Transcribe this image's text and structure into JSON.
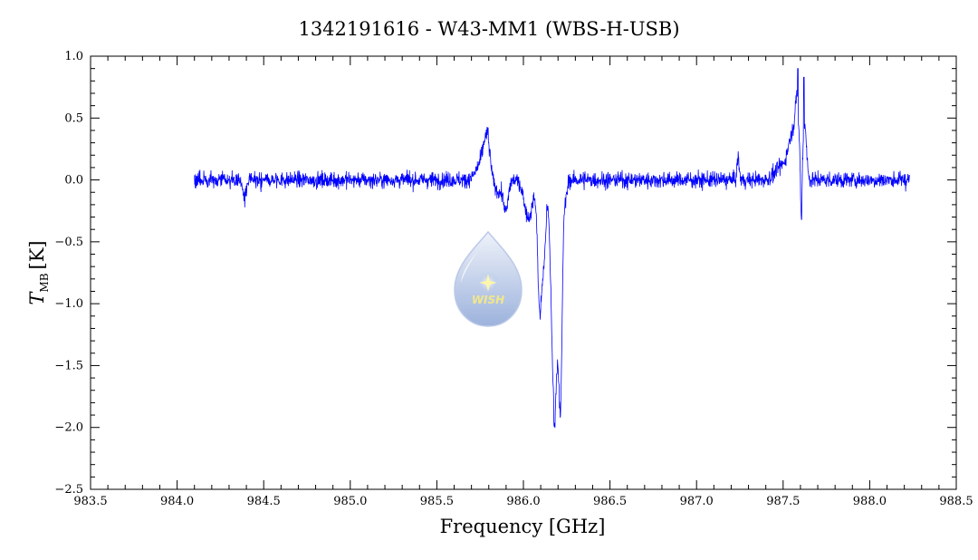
{
  "chart_data": {
    "type": "line",
    "title": "1342191616 - W43-MM1 (WBS-H-USB)",
    "xlabel": "Frequency [GHz]",
    "ylabel_symbol": "T",
    "ylabel_subscript": "MB",
    "ylabel_unit": "[K]",
    "xlim": [
      983.5,
      988.5
    ],
    "ylim": [
      -2.5,
      1.0
    ],
    "x_ticks": [
      "983.5",
      "984.0",
      "984.5",
      "985.0",
      "985.5",
      "986.0",
      "986.5",
      "987.0",
      "987.5",
      "988.0",
      "988.5"
    ],
    "y_ticks": [
      "1.0",
      "0.5",
      "0.0",
      "-0.5",
      "-1.0",
      "-1.5",
      "-2.0",
      "-2.5"
    ],
    "grid": false,
    "legend": "none",
    "series": [
      {
        "color": "#0000ff",
        "x_range": [
          984.1,
          988.23
        ],
        "noise_rms": 0.045,
        "baseline": 0.0,
        "features": [
          {
            "x": 984.39,
            "y": -0.22
          },
          {
            "x": 985.8,
            "y": 0.42
          },
          {
            "x": 985.9,
            "y": -0.35
          },
          {
            "x": 986.1,
            "y": -1.2
          },
          {
            "x": 986.18,
            "y": -2.0
          },
          {
            "x": 986.22,
            "y": -1.6
          },
          {
            "x": 987.24,
            "y": 0.32
          },
          {
            "x": 987.58,
            "y": 0.92
          },
          {
            "x": 987.62,
            "y": 0.84
          },
          {
            "x": 987.61,
            "y": -0.32
          }
        ]
      }
    ]
  },
  "logo": {
    "text": "WISH",
    "colors": {
      "drop_top": "#e9eef8",
      "drop_bottom": "#9cb2dc",
      "star": "#fff6a0",
      "text": "#f3e98a"
    }
  }
}
